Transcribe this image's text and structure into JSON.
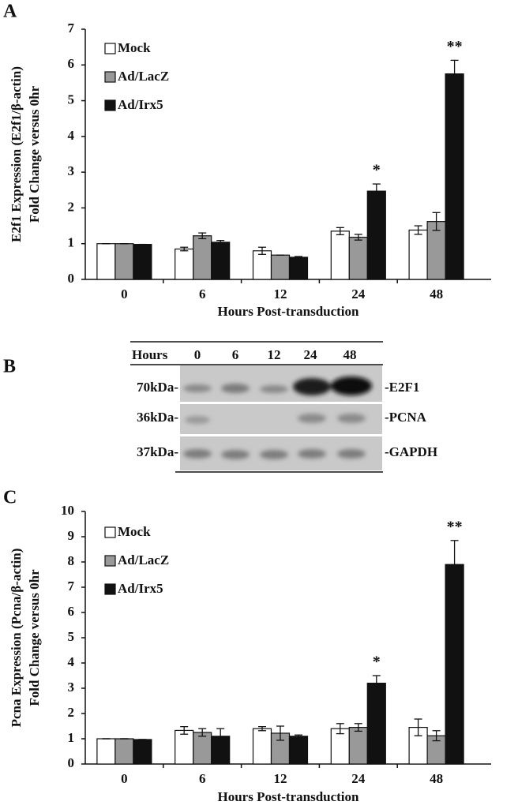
{
  "chart_data": [
    {
      "type": "bar",
      "panel": "A",
      "y_label": [
        "E2f1 Expression (E2f1/β-actin)",
        "Fold Change versus 0hr"
      ],
      "x_label": "Hours Post-transduction",
      "categories": [
        "0",
        "6",
        "12",
        "24",
        "48"
      ],
      "ylim": [
        0,
        7
      ],
      "yticks": [
        0,
        1,
        2,
        3,
        4,
        5,
        6,
        7
      ],
      "series": [
        {
          "name": "Mock",
          "color": "#ffffff",
          "values": [
            1.0,
            0.85,
            0.8,
            1.35,
            1.38
          ],
          "errors": [
            0,
            0.05,
            0.1,
            0.1,
            0.12
          ]
        },
        {
          "name": "Ad/LacZ",
          "color": "#999999",
          "values": [
            1.0,
            1.22,
            0.68,
            1.18,
            1.62
          ],
          "errors": [
            0,
            0.08,
            0,
            0.08,
            0.25
          ]
        },
        {
          "name": "Ad/Irx5",
          "color": "#111111",
          "values": [
            0.98,
            1.04,
            0.62,
            2.47,
            5.75
          ],
          "errors": [
            0,
            0.05,
            0.02,
            0.2,
            0.38
          ]
        }
      ],
      "annotations": [
        {
          "text": "*",
          "category": "24",
          "series": "Ad/Irx5"
        },
        {
          "text": "**",
          "category": "48",
          "series": "Ad/Irx5"
        }
      ]
    },
    {
      "type": "bar",
      "panel": "C",
      "y_label": [
        "Pcna Expression (Pcna/β-actin)",
        "Fold Change versus 0hr"
      ],
      "x_label": "Hours Post-transduction",
      "categories": [
        "0",
        "6",
        "12",
        "24",
        "48"
      ],
      "ylim": [
        0,
        10
      ],
      "yticks": [
        0,
        1,
        2,
        3,
        4,
        5,
        6,
        7,
        8,
        9,
        10
      ],
      "series": [
        {
          "name": "Mock",
          "color": "#ffffff",
          "values": [
            1.0,
            1.33,
            1.4,
            1.4,
            1.45
          ],
          "errors": [
            0,
            0.15,
            0.08,
            0.2,
            0.33
          ]
        },
        {
          "name": "Ad/LacZ",
          "color": "#999999",
          "values": [
            1.0,
            1.25,
            1.22,
            1.45,
            1.12
          ],
          "errors": [
            0,
            0.15,
            0.28,
            0.15,
            0.2
          ]
        },
        {
          "name": "Ad/Irx5",
          "color": "#111111",
          "values": [
            0.97,
            1.1,
            1.1,
            3.2,
            7.9
          ],
          "errors": [
            0,
            0.3,
            0.05,
            0.3,
            0.95
          ]
        }
      ],
      "annotations": [
        {
          "text": "*",
          "category": "24",
          "series": "Ad/Irx5"
        },
        {
          "text": "**",
          "category": "48",
          "series": "Ad/Irx5"
        }
      ]
    }
  ],
  "blot": {
    "panel": "B",
    "header": "Hours",
    "lanes": [
      "0",
      "6",
      "12",
      "24",
      "48"
    ],
    "rows": [
      {
        "size": "70kDa-",
        "protein": "-E2F1"
      },
      {
        "size": "36kDa-",
        "protein": "-PCNA"
      },
      {
        "size": "37kDa-",
        "protein": "-GAPDH"
      }
    ]
  }
}
